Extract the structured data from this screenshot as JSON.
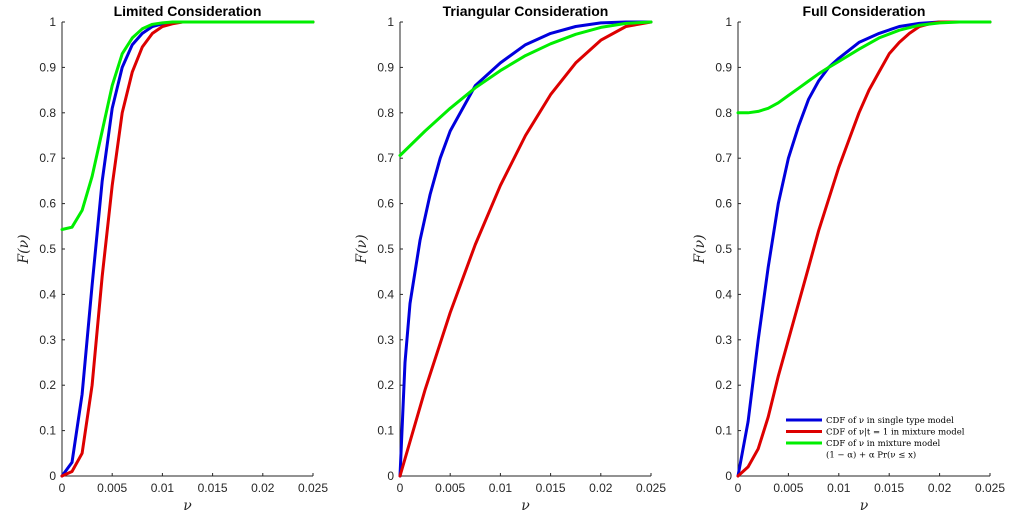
{
  "chart_data": [
    {
      "type": "line",
      "title": "Limited Consideration",
      "xlabel": "ν",
      "ylabel": "F(ν)",
      "xlim": [
        0,
        0.025
      ],
      "ylim": [
        0,
        1
      ],
      "xticks": [
        "0",
        "0.005",
        "0.01",
        "0.015",
        "0.02",
        "0.025"
      ],
      "yticks": [
        "0",
        "0.1",
        "0.2",
        "0.3",
        "0.4",
        "0.5",
        "0.6",
        "0.7",
        "0.8",
        "0.9",
        "1"
      ],
      "grid": false,
      "series": [
        {
          "color": "#0000dd",
          "x": [
            0,
            0.001,
            0.002,
            0.003,
            0.004,
            0.005,
            0.006,
            0.007,
            0.008,
            0.009,
            0.01,
            0.011,
            0.012,
            0.015,
            0.02,
            0.025
          ],
          "y": [
            0,
            0.03,
            0.18,
            0.42,
            0.65,
            0.81,
            0.9,
            0.95,
            0.975,
            0.99,
            0.996,
            0.999,
            1,
            1,
            1,
            1
          ]
        },
        {
          "color": "#dd0000",
          "x": [
            0,
            0.001,
            0.002,
            0.003,
            0.004,
            0.005,
            0.006,
            0.007,
            0.008,
            0.009,
            0.01,
            0.011,
            0.012,
            0.015,
            0.02,
            0.025
          ],
          "y": [
            0,
            0.01,
            0.05,
            0.2,
            0.44,
            0.64,
            0.8,
            0.89,
            0.945,
            0.975,
            0.99,
            0.996,
            1,
            1,
            1,
            1
          ]
        },
        {
          "color": "#00ee00",
          "x": [
            0,
            0.001,
            0.002,
            0.003,
            0.004,
            0.005,
            0.006,
            0.007,
            0.008,
            0.009,
            0.01,
            0.011,
            0.012,
            0.015,
            0.02,
            0.025
          ],
          "y": [
            0.543,
            0.548,
            0.585,
            0.66,
            0.76,
            0.86,
            0.93,
            0.965,
            0.985,
            0.995,
            0.998,
            1,
            1,
            1,
            1,
            1
          ]
        }
      ]
    },
    {
      "type": "line",
      "title": "Triangular Consideration",
      "xlabel": "ν",
      "ylabel": "F(ν)",
      "xlim": [
        0,
        0.025
      ],
      "ylim": [
        0,
        1
      ],
      "xticks": [
        "0",
        "0.005",
        "0.01",
        "0.015",
        "0.02",
        "0.025"
      ],
      "yticks": [
        "0",
        "0.1",
        "0.2",
        "0.3",
        "0.4",
        "0.5",
        "0.6",
        "0.7",
        "0.8",
        "0.9",
        "1"
      ],
      "grid": false,
      "series": [
        {
          "color": "#0000dd",
          "x": [
            0,
            0.0005,
            0.001,
            0.002,
            0.003,
            0.004,
            0.005,
            0.0075,
            0.01,
            0.0125,
            0.015,
            0.0175,
            0.02,
            0.0225,
            0.025
          ],
          "y": [
            0,
            0.25,
            0.38,
            0.52,
            0.62,
            0.7,
            0.76,
            0.86,
            0.91,
            0.95,
            0.975,
            0.99,
            0.998,
            1,
            1
          ]
        },
        {
          "color": "#dd0000",
          "x": [
            0,
            0.0025,
            0.005,
            0.0075,
            0.01,
            0.0125,
            0.015,
            0.0175,
            0.02,
            0.0225,
            0.025
          ],
          "y": [
            0,
            0.19,
            0.36,
            0.51,
            0.64,
            0.75,
            0.84,
            0.91,
            0.96,
            0.99,
            1
          ]
        },
        {
          "color": "#00ee00",
          "x": [
            0,
            0.0025,
            0.005,
            0.0075,
            0.01,
            0.0125,
            0.015,
            0.0175,
            0.02,
            0.0225,
            0.025
          ],
          "y": [
            0.706,
            0.76,
            0.81,
            0.855,
            0.893,
            0.926,
            0.952,
            0.973,
            0.988,
            0.997,
            1
          ]
        }
      ]
    },
    {
      "type": "line",
      "title": "Full Consideration",
      "xlabel": "ν",
      "ylabel": "F(ν)",
      "xlim": [
        0,
        0.025
      ],
      "ylim": [
        0,
        1
      ],
      "xticks": [
        "0",
        "0.005",
        "0.01",
        "0.015",
        "0.02",
        "0.025"
      ],
      "yticks": [
        "0",
        "0.1",
        "0.2",
        "0.3",
        "0.4",
        "0.5",
        "0.6",
        "0.7",
        "0.8",
        "0.9",
        "1"
      ],
      "grid": false,
      "legend": {
        "position": "bottom-right",
        "entries": [
          {
            "label": "CDF of ν in single type model",
            "color": "#0000dd"
          },
          {
            "label": "CDF of ν|t = 1 in mixture model",
            "color": "#dd0000"
          },
          {
            "label": "CDF of ν in mixture model",
            "color": "#00ee00"
          },
          {
            "label": "(1 − α) + α Pr(ν ≤ x)",
            "color": ""
          }
        ]
      },
      "series": [
        {
          "color": "#0000dd",
          "x": [
            0,
            0.001,
            0.002,
            0.003,
            0.004,
            0.005,
            0.006,
            0.007,
            0.008,
            0.009,
            0.01,
            0.012,
            0.014,
            0.016,
            0.018,
            0.02,
            0.022,
            0.025
          ],
          "y": [
            0,
            0.12,
            0.3,
            0.46,
            0.6,
            0.7,
            0.77,
            0.83,
            0.87,
            0.9,
            0.92,
            0.955,
            0.975,
            0.99,
            0.997,
            1,
            1,
            1
          ]
        },
        {
          "color": "#dd0000",
          "x": [
            0,
            0.001,
            0.002,
            0.003,
            0.004,
            0.005,
            0.006,
            0.007,
            0.008,
            0.009,
            0.01,
            0.011,
            0.012,
            0.013,
            0.014,
            0.015,
            0.016,
            0.017,
            0.018,
            0.019,
            0.02,
            0.021,
            0.022,
            0.025
          ],
          "y": [
            0,
            0.02,
            0.06,
            0.13,
            0.22,
            0.3,
            0.38,
            0.46,
            0.54,
            0.61,
            0.68,
            0.74,
            0.8,
            0.85,
            0.89,
            0.93,
            0.955,
            0.975,
            0.99,
            0.996,
            1,
            1,
            1,
            1
          ]
        },
        {
          "color": "#00ee00",
          "x": [
            0,
            0.001,
            0.002,
            0.003,
            0.004,
            0.005,
            0.006,
            0.007,
            0.008,
            0.009,
            0.01,
            0.012,
            0.014,
            0.016,
            0.018,
            0.02,
            0.022,
            0.025
          ],
          "y": [
            0.8,
            0.8,
            0.803,
            0.81,
            0.822,
            0.838,
            0.854,
            0.87,
            0.886,
            0.9,
            0.913,
            0.94,
            0.965,
            0.982,
            0.993,
            0.998,
            1,
            1
          ]
        }
      ]
    }
  ]
}
